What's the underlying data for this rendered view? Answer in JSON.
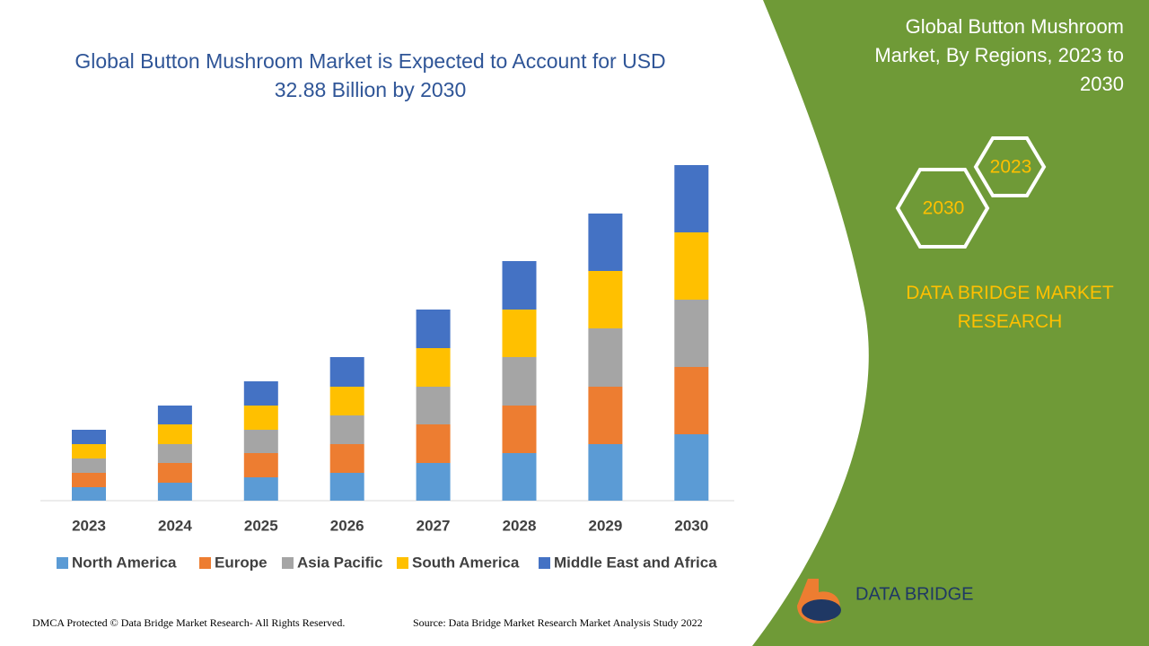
{
  "chart_data": {
    "type": "stacked-bar",
    "title": "Global Button Mushroom Market is Expected to Account for USD 32.88 Billion by 2030",
    "categories": [
      "2023",
      "2024",
      "2025",
      "2026",
      "2027",
      "2028",
      "2029",
      "2030"
    ],
    "series": [
      {
        "name": "North America",
        "color": "#5b9bd5",
        "values": [
          15,
          20,
          26,
          31,
          42,
          53,
          63,
          74
        ]
      },
      {
        "name": "Europe",
        "color": "#ed7d31",
        "values": [
          16,
          22,
          27,
          32,
          43,
          53,
          64,
          75
        ]
      },
      {
        "name": "Asia Pacific",
        "color": "#a5a5a5",
        "values": [
          16,
          21,
          26,
          32,
          42,
          54,
          65,
          75
        ]
      },
      {
        "name": "South America",
        "color": "#ffc000",
        "values": [
          16,
          22,
          27,
          32,
          43,
          53,
          64,
          75
        ]
      },
      {
        "name": "Middle East and Africa",
        "color": "#4472c4",
        "values": [
          16,
          21,
          27,
          33,
          43,
          54,
          64,
          75
        ]
      }
    ]
  },
  "panel": {
    "title": "Global Button Mushroom Market, By Regions, 2023 to 2030",
    "hex_labels": [
      "2023",
      "2030"
    ],
    "brand": "DATA BRIDGE MARKET RESEARCH",
    "logo": "DATA BRIDGE"
  },
  "footer": {
    "left": "DMCA Protected © Data Bridge Market Research- All Rights Reserved.",
    "right": "Source: Data Bridge Market Research Market Analysis Study 2022"
  }
}
